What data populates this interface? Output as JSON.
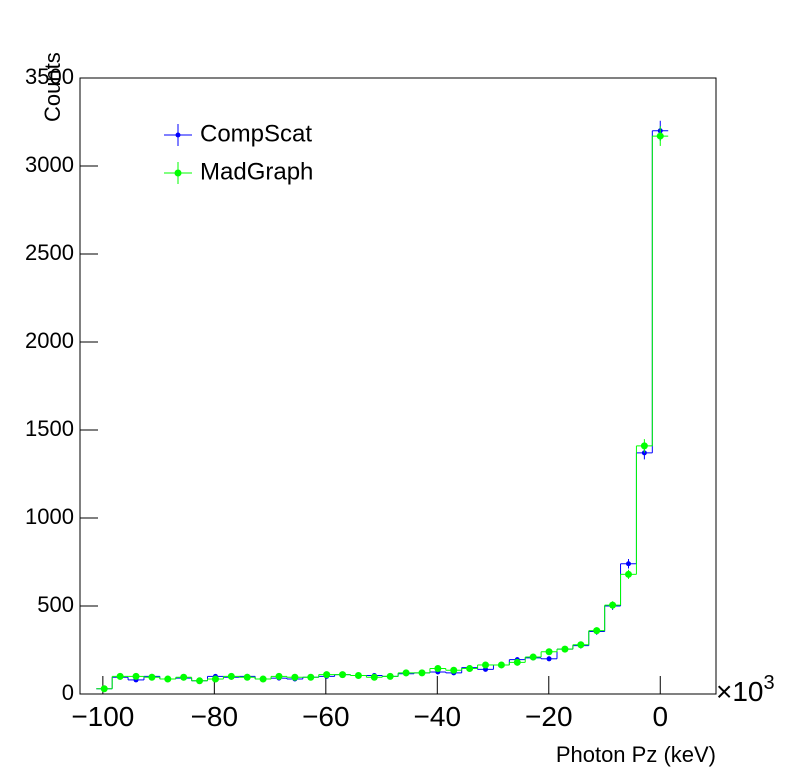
{
  "chart_data": {
    "type": "histogram",
    "y_label": "Counts",
    "x_label": "Photon Pz (keV)",
    "x_scale_label": "×10",
    "x_scale_exponent": "3",
    "bins": [
      -101.175,
      -98.325,
      -95.475,
      -92.625,
      -89.775,
      -86.925,
      -84.075,
      -81.225,
      -78.375,
      -75.525,
      -72.675,
      -69.825,
      -66.975,
      -64.125,
      -61.275,
      -58.425,
      -55.575,
      -52.725,
      -49.875,
      -47.025,
      -44.175,
      -41.325,
      -38.475,
      -35.625,
      -32.775,
      -29.925,
      -27.075,
      -24.225,
      -21.375,
      -18.525,
      -15.675,
      -12.825,
      -9.975,
      -7.125,
      -4.275,
      -1.425,
      1.425
    ],
    "series": [
      {
        "name": "CompScat",
        "color": "#0000ff",
        "values": [
          30,
          95,
          80,
          100,
          85,
          90,
          75,
          100,
          95,
          100,
          85,
          90,
          85,
          95,
          100,
          110,
          105,
          105,
          100,
          115,
          120,
          125,
          120,
          150,
          140,
          165,
          195,
          205,
          200,
          255,
          275,
          355,
          500,
          740,
          1370,
          3200
        ],
        "errors": [
          5,
          10,
          9,
          10,
          9,
          9,
          9,
          10,
          10,
          10,
          9,
          9,
          9,
          10,
          10,
          10,
          10,
          10,
          10,
          11,
          11,
          11,
          11,
          12,
          12,
          13,
          14,
          14,
          14,
          16,
          17,
          19,
          22,
          27,
          37,
          57
        ]
      },
      {
        "name": "MadGraph",
        "color": "#00ff00",
        "values": [
          30,
          100,
          100,
          95,
          85,
          95,
          75,
          85,
          100,
          95,
          85,
          100,
          95,
          95,
          110,
          110,
          105,
          95,
          100,
          120,
          120,
          145,
          135,
          145,
          165,
          165,
          180,
          210,
          240,
          255,
          280,
          360,
          505,
          680,
          1410,
          3170
        ],
        "errors": [
          5,
          10,
          10,
          10,
          9,
          10,
          9,
          9,
          10,
          10,
          9,
          10,
          10,
          10,
          10,
          10,
          10,
          10,
          10,
          11,
          11,
          12,
          12,
          12,
          13,
          13,
          13,
          14,
          15,
          16,
          17,
          19,
          22,
          26,
          38,
          56
        ]
      }
    ],
    "xlim": [
      -104.1,
      10
    ],
    "ylim": [
      0,
      3500
    ],
    "xticks": [
      {
        "value": -100,
        "label": "−100"
      },
      {
        "value": -80,
        "label": "−80"
      },
      {
        "value": -60,
        "label": "−60"
      },
      {
        "value": -40,
        "label": "−40"
      },
      {
        "value": -20,
        "label": "−20"
      },
      0
    ],
    "yticks": [
      0,
      500,
      1000,
      1500,
      2000,
      2500,
      3000,
      3500
    ],
    "legend": "upper left"
  }
}
